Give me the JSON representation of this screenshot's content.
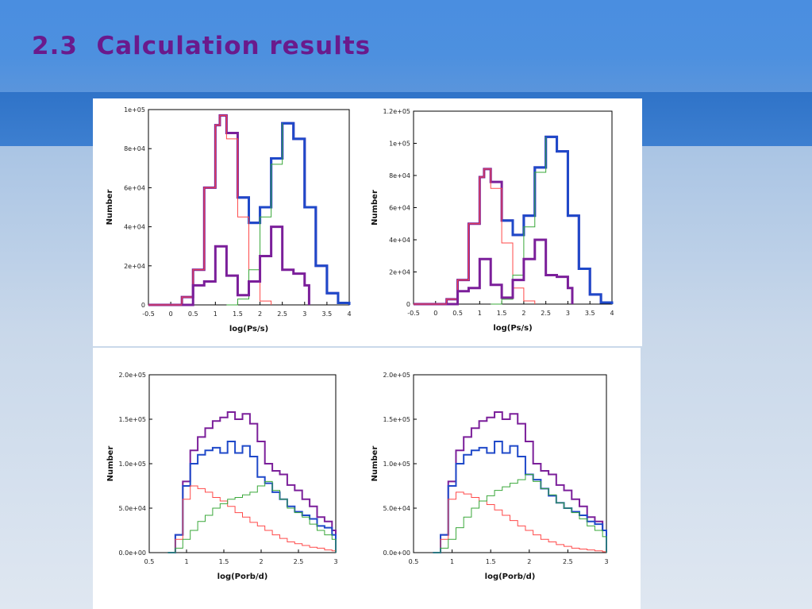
{
  "slide": {
    "title": "2.3  Calculation results"
  },
  "colors": {
    "purple": "#7b1f9a",
    "blue": "#1f49c9",
    "red": "#ff4a4a",
    "green": "#3aa83a"
  },
  "chart_data": [
    {
      "type": "line",
      "xlabel": "log(Ps/s)",
      "ylabel": "Number",
      "xlim": [
        -0.5,
        4
      ],
      "ylim": [
        0,
        100000
      ],
      "xticks": [
        "-0.5",
        "0",
        "0.5",
        "1",
        "1.5",
        "2",
        "2.5",
        "3",
        "3.5",
        "4"
      ],
      "yticks": [
        "0",
        "2e+04",
        "4e+04",
        "6e+04",
        "8e+04",
        "1e+05"
      ],
      "grid": false,
      "series": [
        {
          "color": "purple",
          "width": 3,
          "x": [
            -0.5,
            0,
            0.25,
            0.5,
            0.75,
            1,
            1.1,
            1.25,
            1.5,
            1.75,
            2,
            2.25,
            2.5,
            2.75,
            3,
            3.25,
            3.5,
            3.75,
            4
          ],
          "y": [
            0,
            0,
            4000,
            18000,
            60000,
            92000,
            97000,
            88000,
            55000,
            42000,
            50000,
            75000,
            93000,
            85000,
            50000,
            20000,
            6000,
            1000,
            0
          ]
        },
        {
          "color": "blue",
          "width": 3,
          "x": [
            1.5,
            1.75,
            2,
            2.25,
            2.5,
            2.75,
            3,
            3.25,
            3.5,
            3.75,
            4
          ],
          "y": [
            55000,
            42000,
            50000,
            75000,
            93000,
            85000,
            50000,
            20000,
            6000,
            1000,
            0
          ]
        },
        {
          "color": "red",
          "width": 1,
          "x": [
            -0.5,
            0,
            0.25,
            0.5,
            0.75,
            1,
            1.1,
            1.25,
            1.5,
            1.75,
            2,
            2.25
          ],
          "y": [
            0,
            0,
            4000,
            18000,
            60000,
            92000,
            97000,
            85000,
            45000,
            12000,
            2000,
            0
          ]
        },
        {
          "color": "green",
          "width": 1,
          "x": [
            1.25,
            1.5,
            1.75,
            2,
            2.25,
            2.5
          ],
          "y": [
            0,
            3000,
            18000,
            45000,
            72000,
            93000
          ]
        },
        {
          "color": "purple",
          "width": 3,
          "x": [
            0.25,
            0.5,
            0.75,
            1,
            1.25,
            1.5,
            1.75,
            2,
            2.25,
            2.5,
            2.75,
            3,
            3.1
          ],
          "y": [
            0,
            10000,
            12000,
            30000,
            15000,
            5000,
            12000,
            25000,
            40000,
            18000,
            16000,
            10000,
            0
          ]
        }
      ]
    },
    {
      "type": "line",
      "xlabel": "log(Ps/s)",
      "ylabel": "Number",
      "xlim": [
        -0.5,
        4
      ],
      "ylim": [
        0,
        120000
      ],
      "xticks": [
        "-0.5",
        "0",
        "0.5",
        "1",
        "1.5",
        "2",
        "2.5",
        "3",
        "3.5",
        "4"
      ],
      "yticks": [
        "0",
        "2e+04",
        "4e+04",
        "6e+04",
        "8e+04",
        "1e+05",
        "1.2e+05"
      ],
      "grid": false,
      "series": [
        {
          "color": "purple",
          "width": 3,
          "x": [
            -0.5,
            0,
            0.25,
            0.5,
            0.75,
            1,
            1.1,
            1.25,
            1.5,
            1.75,
            2,
            2.25,
            2.5,
            2.75,
            3,
            3.25,
            3.5,
            3.75,
            4
          ],
          "y": [
            0,
            0,
            3000,
            15000,
            50000,
            79000,
            84000,
            76000,
            52000,
            43000,
            55000,
            85000,
            104000,
            95000,
            55000,
            22000,
            6000,
            1000,
            0
          ]
        },
        {
          "color": "blue",
          "width": 3,
          "x": [
            1.5,
            1.75,
            2,
            2.25,
            2.5,
            2.75,
            3,
            3.25,
            3.5,
            3.75,
            4
          ],
          "y": [
            52000,
            43000,
            55000,
            85000,
            104000,
            95000,
            55000,
            22000,
            6000,
            1000,
            0
          ]
        },
        {
          "color": "red",
          "width": 1,
          "x": [
            -0.5,
            0,
            0.25,
            0.5,
            0.75,
            1,
            1.1,
            1.25,
            1.5,
            1.75,
            2,
            2.25
          ],
          "y": [
            0,
            0,
            3000,
            15000,
            50000,
            79000,
            84000,
            72000,
            38000,
            10000,
            2000,
            0
          ]
        },
        {
          "color": "green",
          "width": 1,
          "x": [
            1.25,
            1.5,
            1.75,
            2,
            2.25,
            2.5
          ],
          "y": [
            0,
            3000,
            18000,
            48000,
            82000,
            104000
          ]
        },
        {
          "color": "purple",
          "width": 3,
          "x": [
            0.25,
            0.5,
            0.75,
            1,
            1.25,
            1.5,
            1.75,
            2,
            2.25,
            2.5,
            2.75,
            3,
            3.1
          ],
          "y": [
            0,
            8000,
            10000,
            28000,
            12000,
            4000,
            15000,
            28000,
            40000,
            18000,
            17000,
            10000,
            0
          ]
        }
      ]
    },
    {
      "type": "line",
      "xlabel": "log(Porb/d)",
      "ylabel": "Number",
      "xlim": [
        0.5,
        3
      ],
      "ylim": [
        0,
        200000
      ],
      "xticks": [
        "0.5",
        "1",
        "1.5",
        "2",
        "2.5",
        "3"
      ],
      "yticks": [
        "0.0e+00",
        "5.0e+04",
        "1.0e+05",
        "1.5e+05",
        "2.0e+05"
      ],
      "grid": false,
      "series": [
        {
          "color": "purple",
          "width": 2,
          "x": [
            0.75,
            0.85,
            0.95,
            1.05,
            1.15,
            1.25,
            1.35,
            1.45,
            1.55,
            1.65,
            1.75,
            1.85,
            1.95,
            2.05,
            2.15,
            2.25,
            2.35,
            2.45,
            2.55,
            2.65,
            2.75,
            2.85,
            2.95,
            3
          ],
          "y": [
            0,
            20000,
            80000,
            115000,
            130000,
            140000,
            148000,
            152000,
            158000,
            150000,
            156000,
            145000,
            125000,
            100000,
            92000,
            88000,
            76000,
            70000,
            60000,
            52000,
            40000,
            35000,
            25000,
            0
          ]
        },
        {
          "color": "blue",
          "width": 2,
          "x": [
            0.75,
            0.85,
            0.95,
            1.05,
            1.15,
            1.25,
            1.35,
            1.45,
            1.55,
            1.65,
            1.75,
            1.85,
            1.95,
            2.05,
            2.15,
            2.25,
            2.35,
            2.45,
            2.55,
            2.65,
            2.75,
            2.85,
            2.95,
            3
          ],
          "y": [
            0,
            20000,
            75000,
            100000,
            110000,
            115000,
            118000,
            112000,
            125000,
            112000,
            120000,
            108000,
            85000,
            78000,
            68000,
            60000,
            52000,
            46000,
            42000,
            38000,
            30000,
            28000,
            20000,
            0
          ]
        },
        {
          "color": "red",
          "width": 1,
          "x": [
            0.75,
            0.85,
            0.95,
            1.05,
            1.15,
            1.25,
            1.35,
            1.45,
            1.55,
            1.65,
            1.75,
            1.85,
            1.95,
            2.05,
            2.15,
            2.25,
            2.35,
            2.45,
            2.55,
            2.65,
            2.75,
            2.85,
            2.95,
            3
          ],
          "y": [
            0,
            15000,
            60000,
            75000,
            72000,
            68000,
            62000,
            58000,
            52000,
            45000,
            40000,
            34000,
            30000,
            25000,
            20000,
            16000,
            12000,
            10000,
            8000,
            6000,
            5000,
            3000,
            2000,
            0
          ]
        },
        {
          "color": "green",
          "width": 1,
          "x": [
            0.75,
            0.85,
            0.95,
            1.05,
            1.15,
            1.25,
            1.35,
            1.45,
            1.55,
            1.65,
            1.75,
            1.85,
            1.95,
            2.05,
            2.15,
            2.25,
            2.35,
            2.45,
            2.55,
            2.65,
            2.75,
            2.85,
            2.95,
            3
          ],
          "y": [
            0,
            5000,
            15000,
            25000,
            35000,
            42000,
            50000,
            55000,
            60000,
            62000,
            65000,
            68000,
            75000,
            80000,
            70000,
            60000,
            50000,
            45000,
            40000,
            32000,
            25000,
            20000,
            15000,
            0
          ]
        }
      ]
    },
    {
      "type": "line",
      "xlabel": "log(Porb/d)",
      "ylabel": "Number",
      "xlim": [
        0.5,
        3
      ],
      "ylim": [
        0,
        200000
      ],
      "xticks": [
        "0.5",
        "1",
        "1.5",
        "2",
        "2.5",
        "3"
      ],
      "yticks": [
        "0.0e+00",
        "5.0e+04",
        "1.0e+05",
        "1.5e+05",
        "2.0e+05"
      ],
      "grid": false,
      "series": [
        {
          "color": "purple",
          "width": 2,
          "x": [
            0.75,
            0.85,
            0.95,
            1.05,
            1.15,
            1.25,
            1.35,
            1.45,
            1.55,
            1.65,
            1.75,
            1.85,
            1.95,
            2.05,
            2.15,
            2.25,
            2.35,
            2.45,
            2.55,
            2.65,
            2.75,
            2.85,
            2.95,
            3
          ],
          "y": [
            0,
            20000,
            80000,
            115000,
            130000,
            140000,
            148000,
            152000,
            158000,
            150000,
            156000,
            145000,
            125000,
            100000,
            92000,
            88000,
            76000,
            70000,
            60000,
            52000,
            40000,
            35000,
            25000,
            0
          ]
        },
        {
          "color": "blue",
          "width": 2,
          "x": [
            0.75,
            0.85,
            0.95,
            1.05,
            1.15,
            1.25,
            1.35,
            1.45,
            1.55,
            1.65,
            1.75,
            1.85,
            1.95,
            2.05,
            2.15,
            2.25,
            2.35,
            2.45,
            2.55,
            2.65,
            2.75,
            2.85,
            2.95,
            3
          ],
          "y": [
            0,
            20000,
            75000,
            100000,
            110000,
            115000,
            118000,
            112000,
            125000,
            112000,
            120000,
            108000,
            88000,
            82000,
            72000,
            64000,
            56000,
            50000,
            46000,
            42000,
            35000,
            32000,
            25000,
            0
          ]
        },
        {
          "color": "red",
          "width": 1,
          "x": [
            0.75,
            0.85,
            0.95,
            1.05,
            1.15,
            1.25,
            1.35,
            1.45,
            1.55,
            1.65,
            1.75,
            1.85,
            1.95,
            2.05,
            2.15,
            2.25,
            2.35,
            2.45,
            2.55,
            2.65,
            2.75,
            2.85,
            2.95,
            3
          ],
          "y": [
            0,
            15000,
            60000,
            68000,
            66000,
            62000,
            58000,
            54000,
            48000,
            42000,
            36000,
            30000,
            25000,
            20000,
            15000,
            12000,
            9000,
            7000,
            5000,
            4000,
            3000,
            2000,
            1000,
            0
          ]
        },
        {
          "color": "green",
          "width": 1,
          "x": [
            0.75,
            0.85,
            0.95,
            1.05,
            1.15,
            1.25,
            1.35,
            1.45,
            1.55,
            1.65,
            1.75,
            1.85,
            1.95,
            2.05,
            2.15,
            2.25,
            2.35,
            2.45,
            2.55,
            2.65,
            2.75,
            2.85,
            2.95,
            3
          ],
          "y": [
            0,
            5000,
            15000,
            28000,
            40000,
            50000,
            58000,
            64000,
            70000,
            74000,
            78000,
            82000,
            88000,
            80000,
            72000,
            65000,
            56000,
            50000,
            45000,
            38000,
            30000,
            25000,
            18000,
            0
          ]
        }
      ]
    }
  ]
}
